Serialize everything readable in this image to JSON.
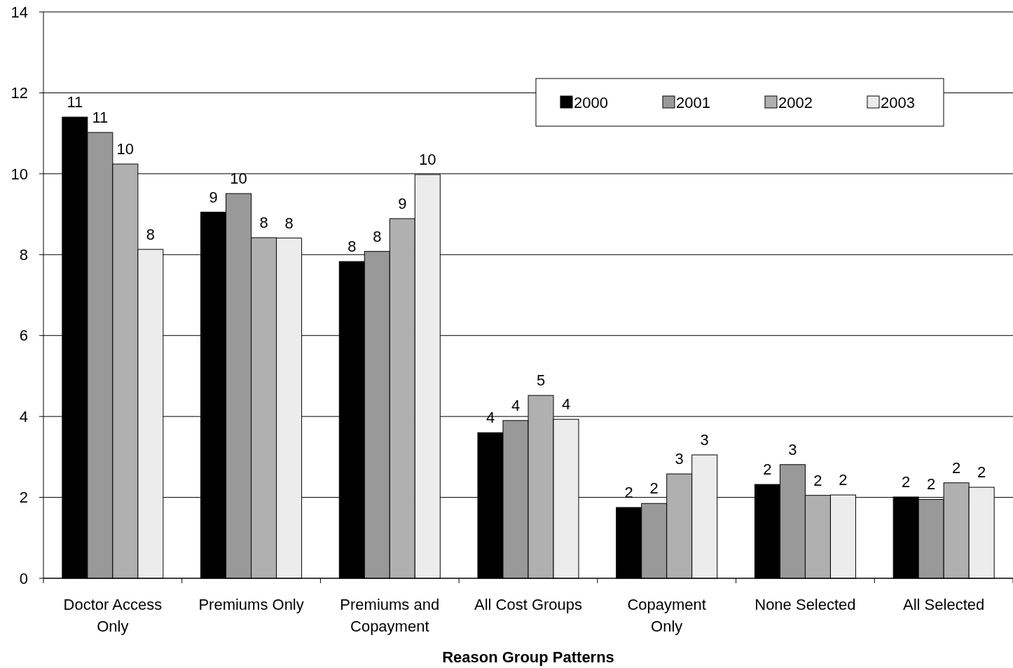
{
  "chart_data": {
    "type": "bar",
    "xlabel": "Reason Group Patterns",
    "categories": [
      "Doctor Access\nOnly",
      "Premiums Only",
      "Premiums and\nCopayment",
      "All Cost Groups",
      "Copayment\nOnly",
      "None Selected",
      "All Selected"
    ],
    "series": [
      {
        "name": "2000",
        "color": "#000000",
        "values": [
          11.4,
          9.05,
          7.83,
          3.6,
          1.75,
          2.32,
          2.01
        ],
        "value_labels": [
          "11",
          "9",
          "8",
          "4",
          "2",
          "2",
          "2"
        ]
      },
      {
        "name": "2001",
        "color": "#999999",
        "values": [
          11.02,
          9.51,
          8.08,
          3.9,
          1.85,
          2.81,
          1.95
        ],
        "value_labels": [
          "11",
          "10",
          "8",
          "4",
          "2",
          "3",
          "2"
        ]
      },
      {
        "name": "2002",
        "color": "#b0b0b0",
        "values": [
          10.24,
          8.42,
          8.89,
          4.52,
          2.58,
          2.05,
          2.36
        ],
        "value_labels": [
          "10",
          "8",
          "9",
          "5",
          "3",
          "2",
          "2"
        ]
      },
      {
        "name": "2003",
        "color": "#ececec",
        "values": [
          8.13,
          8.41,
          9.98,
          3.93,
          3.05,
          2.06,
          2.25
        ],
        "value_labels": [
          "8",
          "8",
          "10",
          "4",
          "3",
          "2",
          "2"
        ]
      }
    ],
    "ylim": [
      0,
      14
    ],
    "yticks": [
      0,
      2,
      4,
      6,
      8,
      10,
      12,
      14
    ],
    "grid": "y",
    "legend": "top right"
  }
}
